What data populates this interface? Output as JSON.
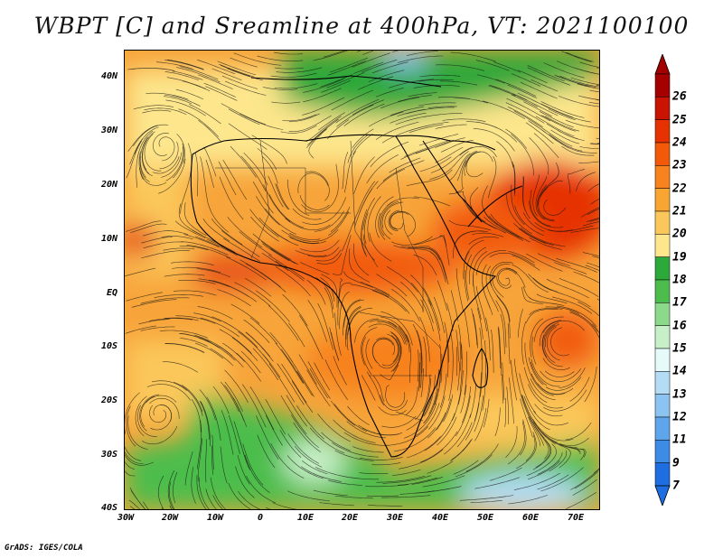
{
  "title": "WBPT [C] and Sreamline at 400hPa, VT: 2021100100",
  "credit": "GrADS: IGES/COLA",
  "map": {
    "variable": "WBPT [C] and Sreamline",
    "level": "400hPa",
    "valid_time": "2021100100",
    "region": "Africa and surrounding oceans",
    "lat_labels": [
      "40N",
      "30N",
      "20N",
      "10N",
      "EQ",
      "10S",
      "20S",
      "30S",
      "40S"
    ],
    "lon_labels": [
      "30W",
      "20W",
      "10W",
      "0",
      "10E",
      "20E",
      "30E",
      "40E",
      "50E",
      "60E",
      "70E"
    ]
  },
  "colorbar": {
    "labels": [
      "26",
      "25",
      "24",
      "23",
      "22",
      "21",
      "20",
      "19",
      "18",
      "17",
      "16",
      "15",
      "14",
      "13",
      "12",
      "11",
      "9",
      "7"
    ],
    "colors": [
      "#a50000",
      "#c81400",
      "#e63200",
      "#f25a0a",
      "#f7821e",
      "#f9a532",
      "#fbc75a",
      "#fde68c",
      "#2da83a",
      "#4cbd4c",
      "#8cd98c",
      "#c8f0c8",
      "#e6fafa",
      "#b4dcf5",
      "#8cc3f0",
      "#5fa5eb",
      "#3c8ce6",
      "#1e6ee1"
    ]
  }
}
